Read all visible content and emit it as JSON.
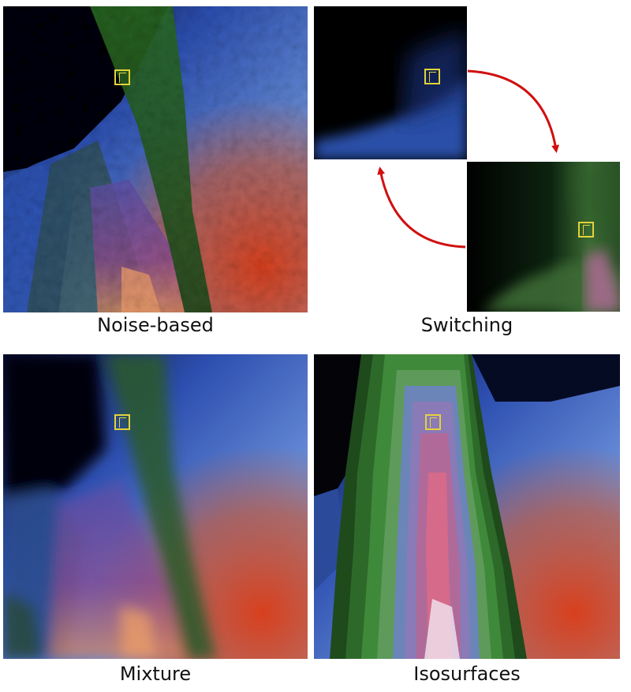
{
  "panels": {
    "noise_based": {
      "caption": "Noise-based"
    },
    "switching": {
      "caption": "Switching"
    },
    "mixture": {
      "caption": "Mixture"
    },
    "isosurfaces": {
      "caption": "Isosurfaces"
    }
  },
  "colors": {
    "blue": "#3c6fd0",
    "green": "#2f6b2c",
    "red": "#d04a2a",
    "purple": "#7a3f8f",
    "marker": "#e3d23a",
    "arrow": "#d01010"
  }
}
